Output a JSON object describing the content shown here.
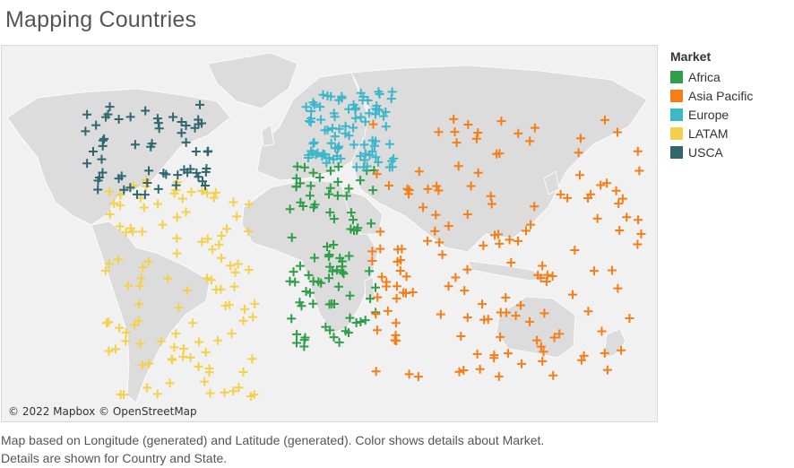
{
  "title": "Mapping Countries",
  "attribution": "© 2022 Mapbox © OpenStreetMap",
  "legend": {
    "title": "Market",
    "items": [
      {
        "label": "Africa",
        "color": "#2e9e48"
      },
      {
        "label": "Asia Pacific",
        "color": "#f57e17"
      },
      {
        "label": "Europe",
        "color": "#3db6c9"
      },
      {
        "label": "LATAM",
        "color": "#f5d04a"
      },
      {
        "label": "USCA",
        "color": "#2f6670"
      }
    ]
  },
  "caption": {
    "line1": "Map based on Longitude (generated) and Latitude (generated).  Color shows details about Market.",
    "line2": "Details are shown for Country and State."
  },
  "map": {
    "marker": "plus-icon",
    "markets": [
      {
        "name": "Africa",
        "color": "#2e9e48",
        "lon": [
          -17,
          32
        ],
        "lat": [
          -34,
          37
        ]
      },
      {
        "name": "Asia Pacific",
        "color": "#f57e17",
        "lon": [
          28,
          178
        ],
        "lat": [
          -46,
          55
        ]
      },
      {
        "name": "Europe",
        "color": "#3db6c9",
        "lon": [
          -10,
          40
        ],
        "lat": [
          36,
          66
        ]
      },
      {
        "name": "LATAM",
        "color": "#f5d04a",
        "lon": [
          -117,
          -35
        ],
        "lat": [
          -54,
          32
        ]
      },
      {
        "name": "USCA",
        "color": "#2f6670",
        "lon": [
          -128,
          -60
        ],
        "lat": [
          25,
          62
        ]
      }
    ]
  }
}
